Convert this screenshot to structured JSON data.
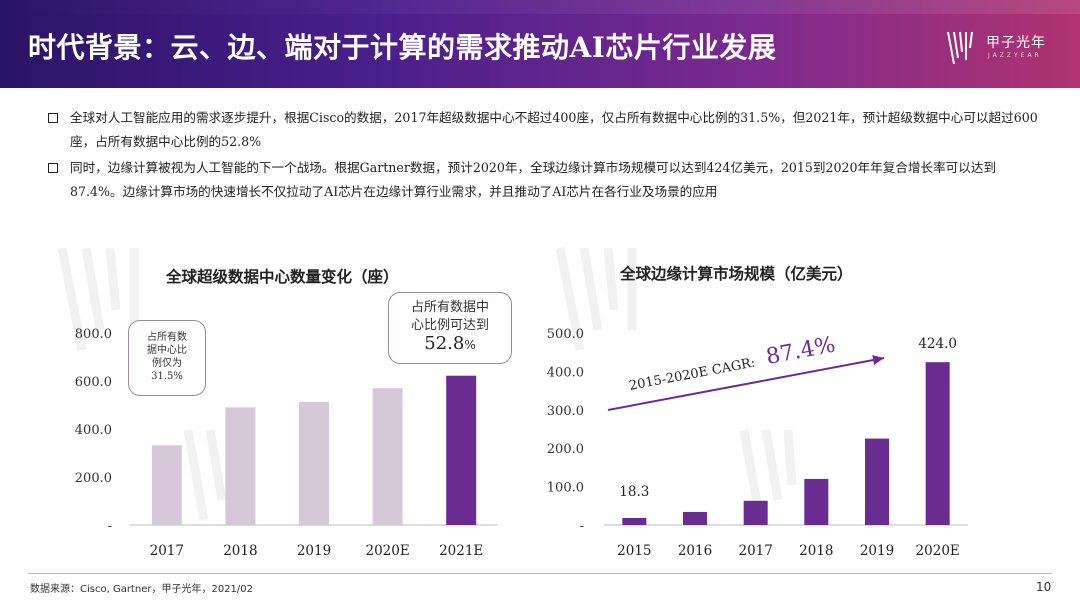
{
  "header": {
    "title": "时代背景：云、边、端对于计算的需求推动AI芯片行业发展",
    "logo_text": "甲子光年",
    "logo_sub": "JAZZYEAR"
  },
  "bullets": [
    "全球对人工智能应用的需求逐步提升，根据Cisco的数据，2017年超级数据中心不超过400座，仅占所有数据中心比例的31.5%，但2021年，预计超级数据中心可以超过600座，占所有数据中心比例的52.8%",
    "同时，边缘计算被视为人工智能的下一个战场。根据Gartner数据，预计2020年，全球边缘计算市场规模可以达到424亿美元，2015到2020年年复合增长率可以达到87.4%。边缘计算市场的快速增长不仅拉动了AI芯片在边缘计算行业需求，并且推动了AI芯片在各行业及场景的应用"
  ],
  "chart_data": [
    {
      "type": "bar",
      "title": "全球超级数据中心数量变化（座）",
      "categories": [
        "2017",
        "2018",
        "2019",
        "2020E",
        "2021E"
      ],
      "values": [
        332,
        490,
        513,
        570,
        622
      ],
      "ylim": [
        0,
        800
      ],
      "yticks": [
        "-",
        "200.0",
        "400.0",
        "600.0",
        "800.0"
      ],
      "colors": [
        "#d6c8d8",
        "#d6c8d8",
        "#d6c8d8",
        "#d6c8d8",
        "#6a2c91"
      ],
      "callout_left": [
        "占所有数",
        "据中心比",
        "例仅为",
        "31.5%"
      ],
      "callout_right": [
        "占所有数据中",
        "心比例可达到"
      ],
      "callout_right_value": "52.8",
      "callout_right_unit": "%"
    },
    {
      "type": "bar",
      "title": "全球边缘计算市场规模（亿美元）",
      "categories": [
        "2015",
        "2016",
        "2017",
        "2018",
        "2019",
        "2020E"
      ],
      "values": [
        18.3,
        34,
        63,
        120,
        225,
        424.0
      ],
      "data_labels": [
        "18.3",
        "",
        "",
        "",
        "",
        "424.0"
      ],
      "ylim": [
        0,
        500
      ],
      "yticks": [
        "-",
        "100.0",
        "200.0",
        "300.0",
        "400.0",
        "500.0"
      ],
      "bar_color": "#6a2c91",
      "cagr_label": "2015-2020E CAGR:",
      "cagr_value": "87.4%"
    }
  ],
  "footer": {
    "source": "数据来源：Cisco, Gartner，甲子光年，2021/02",
    "page": "10"
  }
}
